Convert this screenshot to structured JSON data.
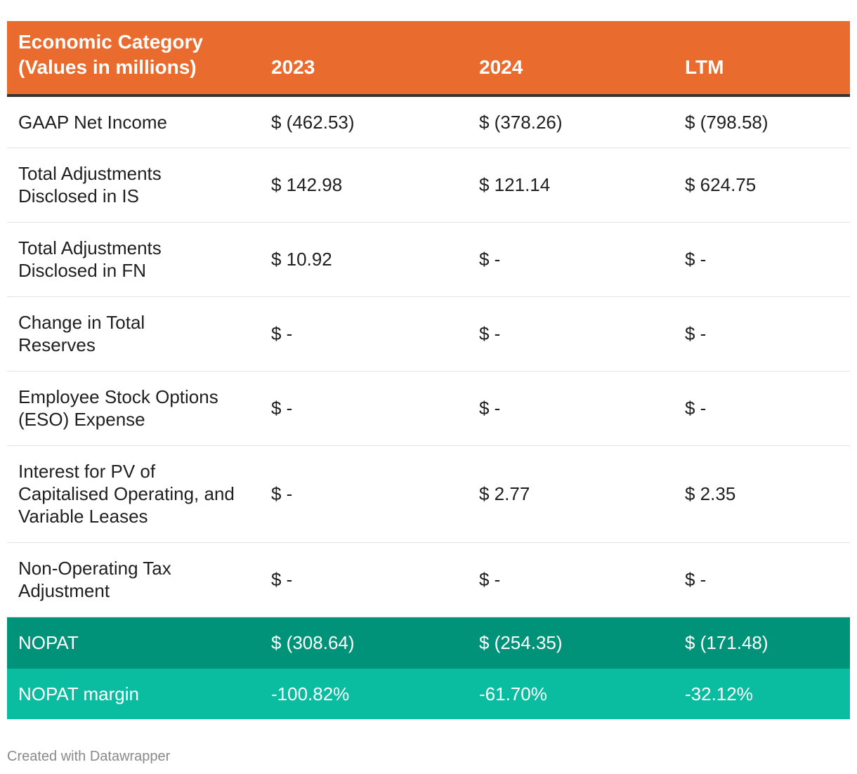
{
  "chart_data": {
    "type": "table",
    "columns": [
      "Economic Category\n(Values in millions)",
      "2023",
      "2024",
      "LTM"
    ],
    "rows": [
      {
        "label": "GAAP Net Income",
        "values": [
          "$ (462.53)",
          "$ (378.26)",
          "$ (798.58)"
        ]
      },
      {
        "label": "Total Adjustments Disclosed in IS",
        "values": [
          "$ 142.98",
          "$ 121.14",
          "$ 624.75"
        ]
      },
      {
        "label": "Total Adjustments Disclosed in FN",
        "values": [
          "$ 10.92",
          "$ -",
          "$ -"
        ]
      },
      {
        "label": "Change in Total Reserves",
        "values": [
          "$ -",
          "$ -",
          "$ -"
        ]
      },
      {
        "label": "Employee Stock Options (ESO) Expense",
        "values": [
          "$ -",
          "$ -",
          "$ -"
        ]
      },
      {
        "label": "Interest for PV of Capitalised Operating, and Variable Leases",
        "values": [
          "$ -",
          "$ 2.77",
          "$ 2.35"
        ]
      },
      {
        "label": "Non-Operating Tax Adjustment",
        "values": [
          "$ -",
          "$ -",
          "$ -"
        ]
      },
      {
        "label": "NOPAT",
        "values": [
          "$ (308.64)",
          "$ (254.35)",
          "$ (171.48)"
        ]
      },
      {
        "label": "NOPAT margin",
        "values": [
          "-100.82%",
          "-61.70%",
          "-32.12%"
        ]
      }
    ]
  },
  "colors": {
    "header_bg": "#e96b2e",
    "nopat_bg": "#00937a",
    "margin_bg": "#0abda0"
  },
  "footer": "Created with Datawrapper"
}
